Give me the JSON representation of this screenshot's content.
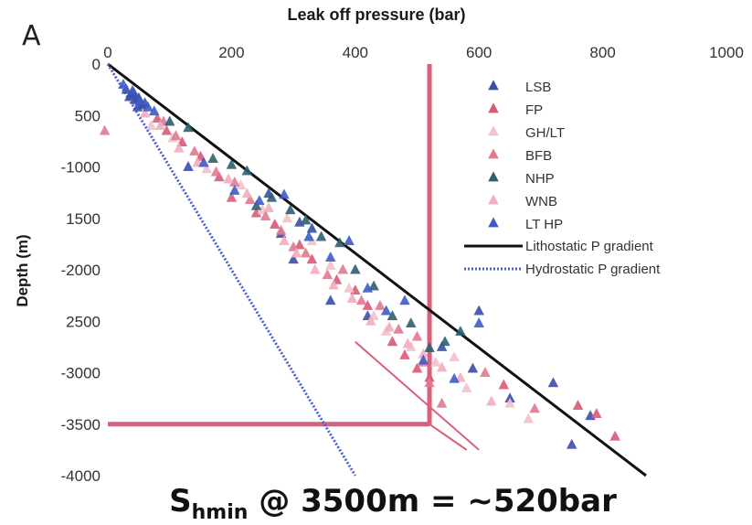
{
  "panel_letter": "A",
  "footer": {
    "prefix": "S",
    "subscript": "hmin",
    "rest": " @ 3500m = ~520bar"
  },
  "chart_data": {
    "type": "scatter",
    "xlabel": "Leak off pressure (bar)",
    "ylabel": "Depth (m)",
    "xlim": [
      0,
      1000
    ],
    "ylim": [
      -4000,
      0
    ],
    "x_ticks": [
      0,
      200,
      400,
      600,
      800,
      1000
    ],
    "x_tick_labels": [
      "0",
      "200",
      "400",
      "600",
      "800",
      "1000"
    ],
    "y_ticks": [
      0,
      -500,
      -1000,
      -1500,
      -2000,
      -2500,
      -3000,
      -3500,
      -4000
    ],
    "y_tick_labels": [
      "0",
      "500",
      "-1000",
      "1500",
      "-2000",
      "2500",
      "-3000",
      "-3500",
      "-4000"
    ],
    "grid": false,
    "legend_position": "top-right",
    "series": [
      {
        "name": "LSB",
        "marker": "triangle",
        "color": "#3a4fa8",
        "points": [
          [
            30,
            -250
          ],
          [
            38,
            -300
          ],
          [
            45,
            -350
          ],
          [
            50,
            -330
          ],
          [
            55,
            -400
          ],
          [
            42,
            -280
          ],
          [
            60,
            -380
          ],
          [
            35,
            -320
          ],
          [
            48,
            -420
          ],
          [
            130,
            -1000
          ],
          [
            260,
            -1260
          ],
          [
            310,
            -1540
          ],
          [
            280,
            -1650
          ],
          [
            330,
            -1600
          ],
          [
            300,
            -1900
          ],
          [
            360,
            -2300
          ],
          [
            420,
            -2450
          ],
          [
            540,
            -2750
          ],
          [
            600,
            -2400
          ],
          [
            590,
            -2960
          ],
          [
            650,
            -3250
          ],
          [
            720,
            -3100
          ],
          [
            750,
            -3700
          ],
          [
            780,
            -3420
          ]
        ]
      },
      {
        "name": "FP",
        "marker": "triangle",
        "color": "#d85a78",
        "points": [
          [
            80,
            -530
          ],
          [
            95,
            -650
          ],
          [
            120,
            -760
          ],
          [
            150,
            -900
          ],
          [
            180,
            -1100
          ],
          [
            200,
            -1300
          ],
          [
            240,
            -1450
          ],
          [
            270,
            -1560
          ],
          [
            310,
            -1760
          ],
          [
            330,
            -1900
          ],
          [
            370,
            -2100
          ],
          [
            400,
            -2200
          ],
          [
            420,
            -2350
          ],
          [
            460,
            -2700
          ],
          [
            480,
            -2830
          ],
          [
            500,
            -2960
          ],
          [
            520,
            -3050
          ],
          [
            640,
            -3120
          ],
          [
            760,
            -3320
          ],
          [
            790,
            -3400
          ],
          [
            820,
            -3620
          ]
        ]
      },
      {
        "name": "GH/LT",
        "marker": "triangle",
        "color": "#f1c3cc",
        "points": [
          [
            70,
            -600
          ],
          [
            105,
            -720
          ],
          [
            160,
            -1020
          ],
          [
            215,
            -1180
          ],
          [
            250,
            -1420
          ],
          [
            290,
            -1500
          ],
          [
            330,
            -1720
          ],
          [
            360,
            -1960
          ],
          [
            390,
            -2180
          ],
          [
            430,
            -2450
          ],
          [
            450,
            -2600
          ],
          [
            490,
            -2750
          ],
          [
            530,
            -2900
          ],
          [
            560,
            -2850
          ],
          [
            580,
            -3150
          ],
          [
            650,
            -3300
          ],
          [
            680,
            -3450
          ]
        ]
      },
      {
        "name": "BFB",
        "marker": "triangle",
        "color": "#e07a8e",
        "points": [
          [
            -5,
            -650
          ],
          [
            90,
            -560
          ],
          [
            110,
            -700
          ],
          [
            140,
            -850
          ],
          [
            175,
            -1050
          ],
          [
            205,
            -1150
          ],
          [
            230,
            -1320
          ],
          [
            255,
            -1480
          ],
          [
            280,
            -1620
          ],
          [
            300,
            -1780
          ],
          [
            320,
            -1840
          ],
          [
            355,
            -2050
          ],
          [
            380,
            -2000
          ],
          [
            410,
            -2300
          ],
          [
            440,
            -2350
          ],
          [
            470,
            -2580
          ],
          [
            500,
            -2650
          ],
          [
            510,
            -2900
          ],
          [
            520,
            -3100
          ],
          [
            540,
            -3300
          ],
          [
            610,
            -3000
          ],
          [
            690,
            -3350
          ]
        ]
      },
      {
        "name": "NHP",
        "marker": "triangle",
        "color": "#2e6070",
        "points": [
          [
            100,
            -560
          ],
          [
            130,
            -620
          ],
          [
            170,
            -920
          ],
          [
            200,
            -980
          ],
          [
            225,
            -1040
          ],
          [
            240,
            -1380
          ],
          [
            265,
            -1300
          ],
          [
            295,
            -1420
          ],
          [
            320,
            -1520
          ],
          [
            345,
            -1680
          ],
          [
            375,
            -1740
          ],
          [
            400,
            -2000
          ],
          [
            430,
            -2160
          ],
          [
            460,
            -2450
          ],
          [
            490,
            -2520
          ],
          [
            520,
            -2760
          ],
          [
            545,
            -2700
          ],
          [
            570,
            -2600
          ]
        ]
      },
      {
        "name": "WNB",
        "marker": "triangle",
        "color": "#f2aebe",
        "points": [
          [
            60,
            -480
          ],
          [
            85,
            -600
          ],
          [
            115,
            -820
          ],
          [
            145,
            -960
          ],
          [
            195,
            -1120
          ],
          [
            225,
            -1260
          ],
          [
            260,
            -1400
          ],
          [
            285,
            -1720
          ],
          [
            305,
            -1840
          ],
          [
            335,
            -2000
          ],
          [
            365,
            -2150
          ],
          [
            395,
            -2280
          ],
          [
            425,
            -2500
          ],
          [
            455,
            -2560
          ],
          [
            485,
            -2720
          ],
          [
            510,
            -2820
          ],
          [
            540,
            -2950
          ],
          [
            570,
            -3050
          ],
          [
            620,
            -3280
          ]
        ]
      },
      {
        "name": "LT HP",
        "marker": "triangle",
        "color": "#3c5bc8",
        "points": [
          [
            25,
            -200
          ],
          [
            40,
            -260
          ],
          [
            52,
            -360
          ],
          [
            65,
            -420
          ],
          [
            75,
            -460
          ],
          [
            155,
            -960
          ],
          [
            205,
            -1230
          ],
          [
            245,
            -1330
          ],
          [
            285,
            -1270
          ],
          [
            325,
            -1680
          ],
          [
            360,
            -1880
          ],
          [
            390,
            -1720
          ],
          [
            420,
            -2180
          ],
          [
            450,
            -2400
          ],
          [
            480,
            -2300
          ],
          [
            510,
            -2880
          ],
          [
            560,
            -3060
          ],
          [
            600,
            -2520
          ]
        ]
      }
    ],
    "reference_lines": [
      {
        "name": "Lithostatic P gradient",
        "style": "solid",
        "color": "#111111",
        "points": [
          [
            0,
            0
          ],
          [
            870,
            -4000
          ]
        ]
      },
      {
        "name": "Hydrostatic P gradient",
        "style": "dotted",
        "color": "#4a5fd0",
        "points": [
          [
            0,
            0
          ],
          [
            400,
            -4000
          ]
        ]
      }
    ],
    "annotation_lines": [
      {
        "color": "#d9607a",
        "points": [
          [
            520,
            0
          ],
          [
            520,
            -3500
          ]
        ]
      },
      {
        "color": "#d9607a",
        "points": [
          [
            0,
            -3500
          ],
          [
            520,
            -3500
          ]
        ]
      },
      {
        "color": "#d9607a",
        "points": [
          [
            400,
            -2700
          ],
          [
            600,
            -3750
          ]
        ]
      },
      {
        "color": "#d9607a",
        "points": [
          [
            520,
            -3500
          ],
          [
            580,
            -3750
          ]
        ]
      }
    ]
  }
}
